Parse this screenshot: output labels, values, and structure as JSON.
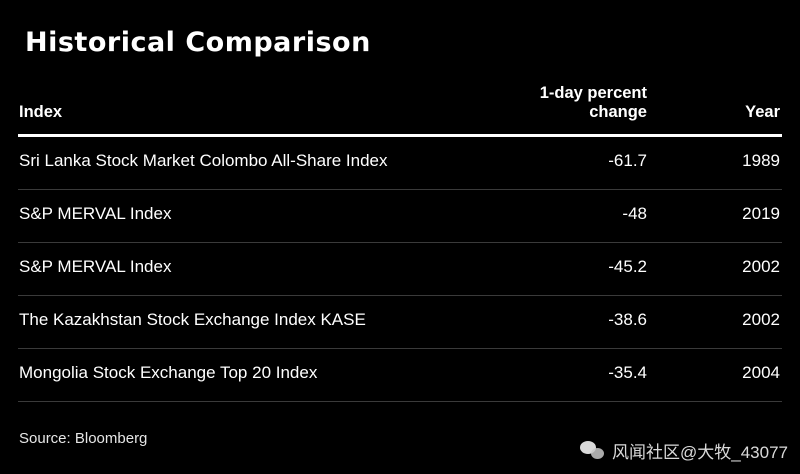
{
  "title": "Historical Comparison",
  "source": "Source: Bloomberg",
  "watermark": "风闻社区@大牧_43077",
  "chart_data": {
    "type": "table",
    "title": "Historical Comparison",
    "columns": [
      "Index",
      "1-day percent change",
      "Year"
    ],
    "header": {
      "index": "Index",
      "change_line1": "1-day percent",
      "change_line2": "change",
      "year": "Year"
    },
    "rows": [
      {
        "index": "Sri Lanka Stock Market Colombo All-Share Index",
        "change": "-61.7",
        "year": "1989"
      },
      {
        "index": "S&P MERVAL Index",
        "change": "-48",
        "year": "2019"
      },
      {
        "index": "S&P MERVAL Index",
        "change": "-45.2",
        "year": "2002"
      },
      {
        "index": "The Kazakhstan Stock Exchange Index KASE",
        "change": "-38.6",
        "year": "2002"
      },
      {
        "index": "Mongolia Stock Exchange Top 20 Index",
        "change": "-35.4",
        "year": "2004"
      }
    ]
  }
}
